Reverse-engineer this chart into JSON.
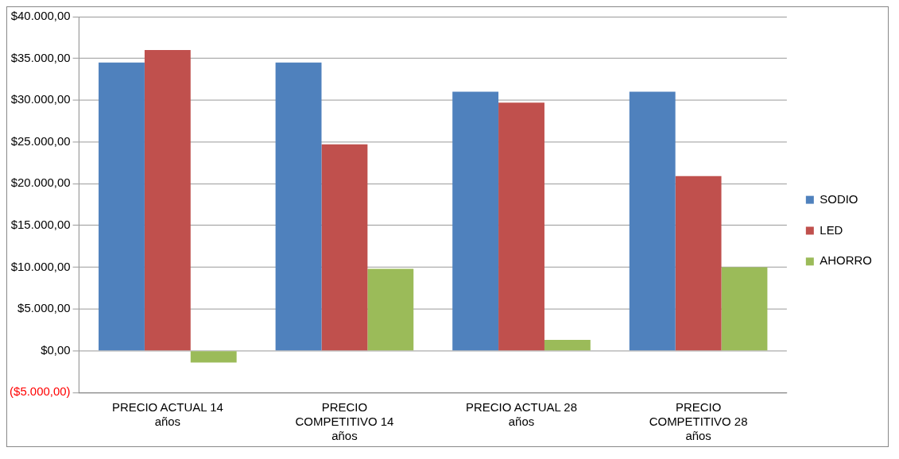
{
  "chart_data": {
    "type": "bar",
    "categories": [
      "PRECIO ACTUAL 14 años",
      "PRECIO COMPETITIVO 14 años",
      "PRECIO ACTUAL 28 años",
      "PRECIO COMPETITIVO 28 años"
    ],
    "series": [
      {
        "name": "SODIO",
        "color": "#4f81bd",
        "values": [
          34500,
          34500,
          31000,
          31000
        ]
      },
      {
        "name": "LED",
        "color": "#c0504d",
        "values": [
          36000,
          24700,
          29700,
          20900
        ]
      },
      {
        "name": "AHORRO",
        "color": "#9bbb59",
        "values": [
          -1400,
          9800,
          1300,
          10000
        ]
      }
    ],
    "ylim": [
      -5000,
      40000
    ],
    "yticks": [
      {
        "value": -5000,
        "label": "($5.000,00)"
      },
      {
        "value": 0,
        "label": "$0,00"
      },
      {
        "value": 5000,
        "label": "$5.000,00"
      },
      {
        "value": 10000,
        "label": "$10.000,00"
      },
      {
        "value": 15000,
        "label": "$15.000,00"
      },
      {
        "value": 20000,
        "label": "$20.000,00"
      },
      {
        "value": 25000,
        "label": "$25.000,00"
      },
      {
        "value": 30000,
        "label": "$30.000,00"
      },
      {
        "value": 35000,
        "label": "$35.000,00"
      },
      {
        "value": 40000,
        "label": "$40.000,00"
      }
    ],
    "grid": "y",
    "legend": "right"
  }
}
